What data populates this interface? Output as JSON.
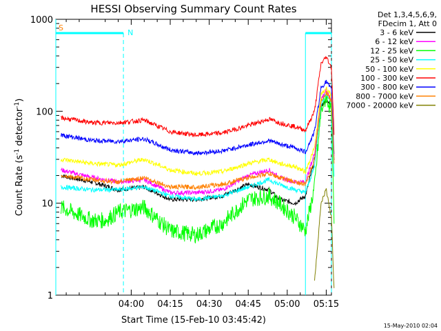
{
  "chart_data": {
    "type": "line",
    "title": "HESSI Observing Summary Count Rates",
    "xlabel": "Start Time (15-Feb-10 03:45:42)",
    "ylabel_main": "Count Rate (s",
    "ylabel_sup1": "-1",
    "ylabel_mid": " detector",
    "ylabel_sup2": "-1",
    "ylabel_end": ")",
    "ylog": true,
    "ylim": [
      1,
      1000
    ],
    "xlim_minutes": [
      -14,
      92
    ],
    "xticks": [
      {
        "m": 15,
        "label": "04:00"
      },
      {
        "m": 30,
        "label": "04:15"
      },
      {
        "m": 45,
        "label": "04:30"
      },
      {
        "m": 60,
        "label": "04:45"
      },
      {
        "m": 75,
        "label": "05:00"
      },
      {
        "m": 90,
        "label": "05:15"
      }
    ],
    "yticks": [
      {
        "v": 1,
        "label": "1"
      },
      {
        "v": 10,
        "label": "10"
      },
      {
        "v": 100,
        "label": "100"
      },
      {
        "v": 1000,
        "label": "1000"
      }
    ],
    "legend_header": [
      "Det 1,3,4,5,6,9,",
      "FDecim 1, Att 0"
    ],
    "legend_placement": "right",
    "grid": false,
    "series": [
      {
        "name": "3 - 6 keV",
        "color": "#000000",
        "m": [
          -12,
          0,
          10,
          20,
          30,
          40,
          50,
          60,
          68,
          72,
          78,
          82,
          85.5,
          88,
          90,
          92,
          93
        ],
        "v": [
          20,
          17,
          14,
          15,
          11,
          11,
          12,
          16,
          14,
          11,
          10,
          12,
          30,
          115,
          130,
          115,
          30
        ]
      },
      {
        "name": "6 - 12 keV",
        "color": "#ff00ff",
        "m": [
          -12,
          0,
          10,
          20,
          30,
          40,
          50,
          60,
          68,
          72,
          78,
          82,
          85.5,
          88,
          90,
          92,
          93
        ],
        "v": [
          23,
          19,
          17,
          18,
          13,
          13,
          14,
          20,
          23,
          19,
          17,
          17,
          35,
          135,
          170,
          135,
          34
        ]
      },
      {
        "name": "12 - 25 keV",
        "color": "#00ff00",
        "m": [
          -12,
          0,
          5,
          10,
          20,
          30,
          40,
          50,
          60,
          68,
          72,
          78,
          82,
          85.5,
          88,
          90,
          92,
          93
        ],
        "v": [
          9,
          6.5,
          6.5,
          8,
          9,
          5,
          4.5,
          6,
          11,
          12,
          10,
          7,
          5,
          15,
          100,
          145,
          100,
          6
        ]
      },
      {
        "name": "25 - 50 keV",
        "color": "#00ffff",
        "m": [
          -12,
          0,
          10,
          20,
          30,
          40,
          50,
          60,
          68,
          72,
          78,
          82,
          85.5,
          88,
          90,
          92,
          93
        ],
        "v": [
          15,
          14,
          14,
          15,
          12,
          11,
          12,
          15,
          18,
          16,
          14,
          13,
          25,
          120,
          155,
          125,
          20
        ]
      },
      {
        "name": "50 - 100 keV",
        "color": "#ffff00",
        "m": [
          -12,
          0,
          10,
          20,
          30,
          40,
          50,
          60,
          68,
          72,
          78,
          82,
          85.5,
          88,
          90,
          92,
          93
        ],
        "v": [
          30,
          27,
          26,
          30,
          23,
          21,
          22,
          27,
          30,
          27,
          25,
          22,
          40,
          150,
          180,
          150,
          36
        ]
      },
      {
        "name": "100 - 300 keV",
        "color": "#ff0000",
        "m": [
          -12,
          0,
          10,
          20,
          30,
          40,
          50,
          60,
          68,
          72,
          78,
          82,
          85.5,
          88,
          90,
          92,
          93
        ],
        "v": [
          85,
          75,
          75,
          80,
          60,
          55,
          58,
          70,
          82,
          75,
          68,
          62,
          100,
          330,
          390,
          300,
          58
        ]
      },
      {
        "name": "300 - 800 keV",
        "color": "#0000ff",
        "m": [
          -12,
          0,
          10,
          20,
          30,
          40,
          50,
          60,
          68,
          72,
          78,
          82,
          85.5,
          88,
          90,
          92,
          93
        ],
        "v": [
          55,
          48,
          47,
          50,
          38,
          35,
          37,
          43,
          48,
          44,
          40,
          36,
          60,
          180,
          210,
          170,
          34
        ]
      },
      {
        "name": "800 - 7000 keV",
        "color": "#ff8000",
        "m": [
          -12,
          0,
          10,
          20,
          30,
          40,
          50,
          60,
          68,
          72,
          78,
          82,
          85.5,
          88,
          90,
          92,
          93
        ],
        "v": [
          20,
          18,
          17,
          19,
          15,
          15,
          16,
          19,
          21,
          19,
          17,
          16,
          30,
          130,
          160,
          130,
          28
        ]
      },
      {
        "name": "7000 - 20000 keV",
        "color": "#808000",
        "m": [
          85.5,
          86.5,
          88,
          90,
          92,
          93
        ],
        "v": [
          1.5,
          3,
          10,
          14,
          7,
          1.2
        ]
      }
    ],
    "intervals": [
      {
        "label": "S",
        "label_color": "#ff8000",
        "start_m": -14,
        "end_m": 12
      },
      {
        "label": "N",
        "label_color": "#00ffff",
        "start_m": 12,
        "end_m": 12
      },
      {
        "label": "",
        "label_color": "#00ffff",
        "start_m": 82,
        "end_m": 92
      }
    ],
    "footer_date": "15-May-2010 02:04"
  }
}
